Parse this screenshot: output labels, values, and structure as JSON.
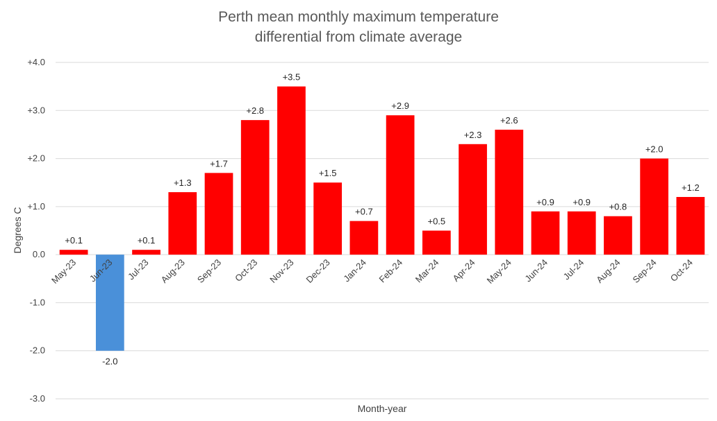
{
  "chart_data": {
    "type": "bar",
    "title_lines": [
      "Perth mean monthly maximum temperature",
      "differential from climate average"
    ],
    "xlabel": "Month-year",
    "ylabel": "Degrees C",
    "ylim": [
      -3.0,
      4.0
    ],
    "y_ticks": [
      4.0,
      3.0,
      2.0,
      1.0,
      0.0,
      -1.0,
      -2.0,
      -3.0
    ],
    "y_tick_labels": [
      "+4.0",
      "+3.0",
      "+2.0",
      "+1.0",
      "0.0",
      "-1.0",
      "-2.0",
      "-3.0"
    ],
    "grid": true,
    "categories": [
      "May-23",
      "Jun-23",
      "Jul-23",
      "Aug-23",
      "Sep-23",
      "Oct-23",
      "Nov-23",
      "Dec-23",
      "Jan-24",
      "Feb-24",
      "Mar-24",
      "Apr-24",
      "May-24",
      "Jun-24",
      "Jul-24",
      "Aug-24",
      "Sep-24",
      "Oct-24"
    ],
    "values": [
      0.1,
      -2.0,
      0.1,
      1.3,
      1.7,
      2.8,
      3.5,
      1.5,
      0.7,
      2.9,
      0.5,
      2.3,
      2.6,
      0.9,
      0.9,
      0.8,
      2.0,
      1.2
    ],
    "data_labels": [
      "+0.1",
      "-2.0",
      "+0.1",
      "+1.3",
      "+1.7",
      "+2.8",
      "+3.5",
      "+1.5",
      "+0.7",
      "+2.9",
      "+0.5",
      "+2.3",
      "+2.6",
      "+0.9",
      "+0.9",
      "+0.8",
      "+2.0",
      "+1.2"
    ],
    "colors": {
      "positive": "#ff0000",
      "negative": "#4a90d9"
    }
  }
}
